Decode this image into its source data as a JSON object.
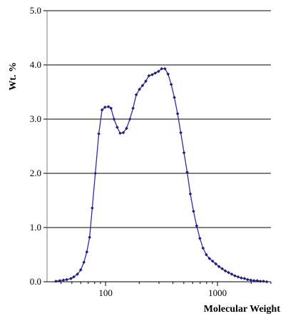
{
  "chart_data": {
    "type": "line",
    "title": "",
    "xlabel": "Molecular Weight",
    "ylabel": "Wt. %",
    "x_scale": "log",
    "xlim": [
      30,
      3000
    ],
    "ylim": [
      0,
      5
    ],
    "x_ticks": [
      100,
      1000
    ],
    "x_tick_labels": [
      "100",
      "1000"
    ],
    "y_ticks": [
      0,
      1,
      2,
      3,
      4,
      5
    ],
    "y_tick_labels": [
      "0.0",
      "1.0",
      "2.0",
      "3.0",
      "4.0",
      "5.0"
    ],
    "grid": "horizontal",
    "legend": "none",
    "line_color": "#2e2e9e",
    "marker_color": "#1c1c7c",
    "series": [
      {
        "points": [
          [
            36,
            0.01
          ],
          [
            39,
            0.02
          ],
          [
            42,
            0.03
          ],
          [
            45,
            0.04
          ],
          [
            49,
            0.06
          ],
          [
            52,
            0.09
          ],
          [
            56,
            0.14
          ],
          [
            60,
            0.22
          ],
          [
            64,
            0.36
          ],
          [
            68,
            0.55
          ],
          [
            72,
            0.82
          ],
          [
            76,
            1.36
          ],
          [
            81,
            2.0
          ],
          [
            87,
            2.73
          ],
          [
            93,
            3.17
          ],
          [
            99,
            3.22
          ],
          [
            106,
            3.23
          ],
          [
            112,
            3.2
          ],
          [
            119,
            3.0
          ],
          [
            127,
            2.85
          ],
          [
            135,
            2.74
          ],
          [
            144,
            2.75
          ],
          [
            154,
            2.83
          ],
          [
            165,
            3.0
          ],
          [
            176,
            3.2
          ],
          [
            188,
            3.45
          ],
          [
            201,
            3.55
          ],
          [
            214,
            3.62
          ],
          [
            229,
            3.7
          ],
          [
            244,
            3.8
          ],
          [
            261,
            3.82
          ],
          [
            278,
            3.85
          ],
          [
            297,
            3.88
          ],
          [
            317,
            3.93
          ],
          [
            339,
            3.93
          ],
          [
            362,
            3.83
          ],
          [
            386,
            3.64
          ],
          [
            412,
            3.4
          ],
          [
            440,
            3.1
          ],
          [
            470,
            2.75
          ],
          [
            502,
            2.38
          ],
          [
            536,
            2.02
          ],
          [
            572,
            1.62
          ],
          [
            611,
            1.3
          ],
          [
            652,
            1.03
          ],
          [
            696,
            0.8
          ],
          [
            743,
            0.62
          ],
          [
            794,
            0.5
          ],
          [
            847,
            0.43
          ],
          [
            905,
            0.38
          ],
          [
            966,
            0.33
          ],
          [
            1031,
            0.28
          ],
          [
            1101,
            0.24
          ],
          [
            1176,
            0.2
          ],
          [
            1255,
            0.17
          ],
          [
            1340,
            0.14
          ],
          [
            1431,
            0.11
          ],
          [
            1528,
            0.09
          ],
          [
            1631,
            0.07
          ],
          [
            1742,
            0.06
          ],
          [
            1860,
            0.04
          ],
          [
            1986,
            0.03
          ],
          [
            2120,
            0.02
          ],
          [
            2264,
            0.02
          ],
          [
            2417,
            0.01
          ],
          [
            2580,
            0.01
          ],
          [
            2755,
            0.0
          ]
        ]
      }
    ]
  }
}
